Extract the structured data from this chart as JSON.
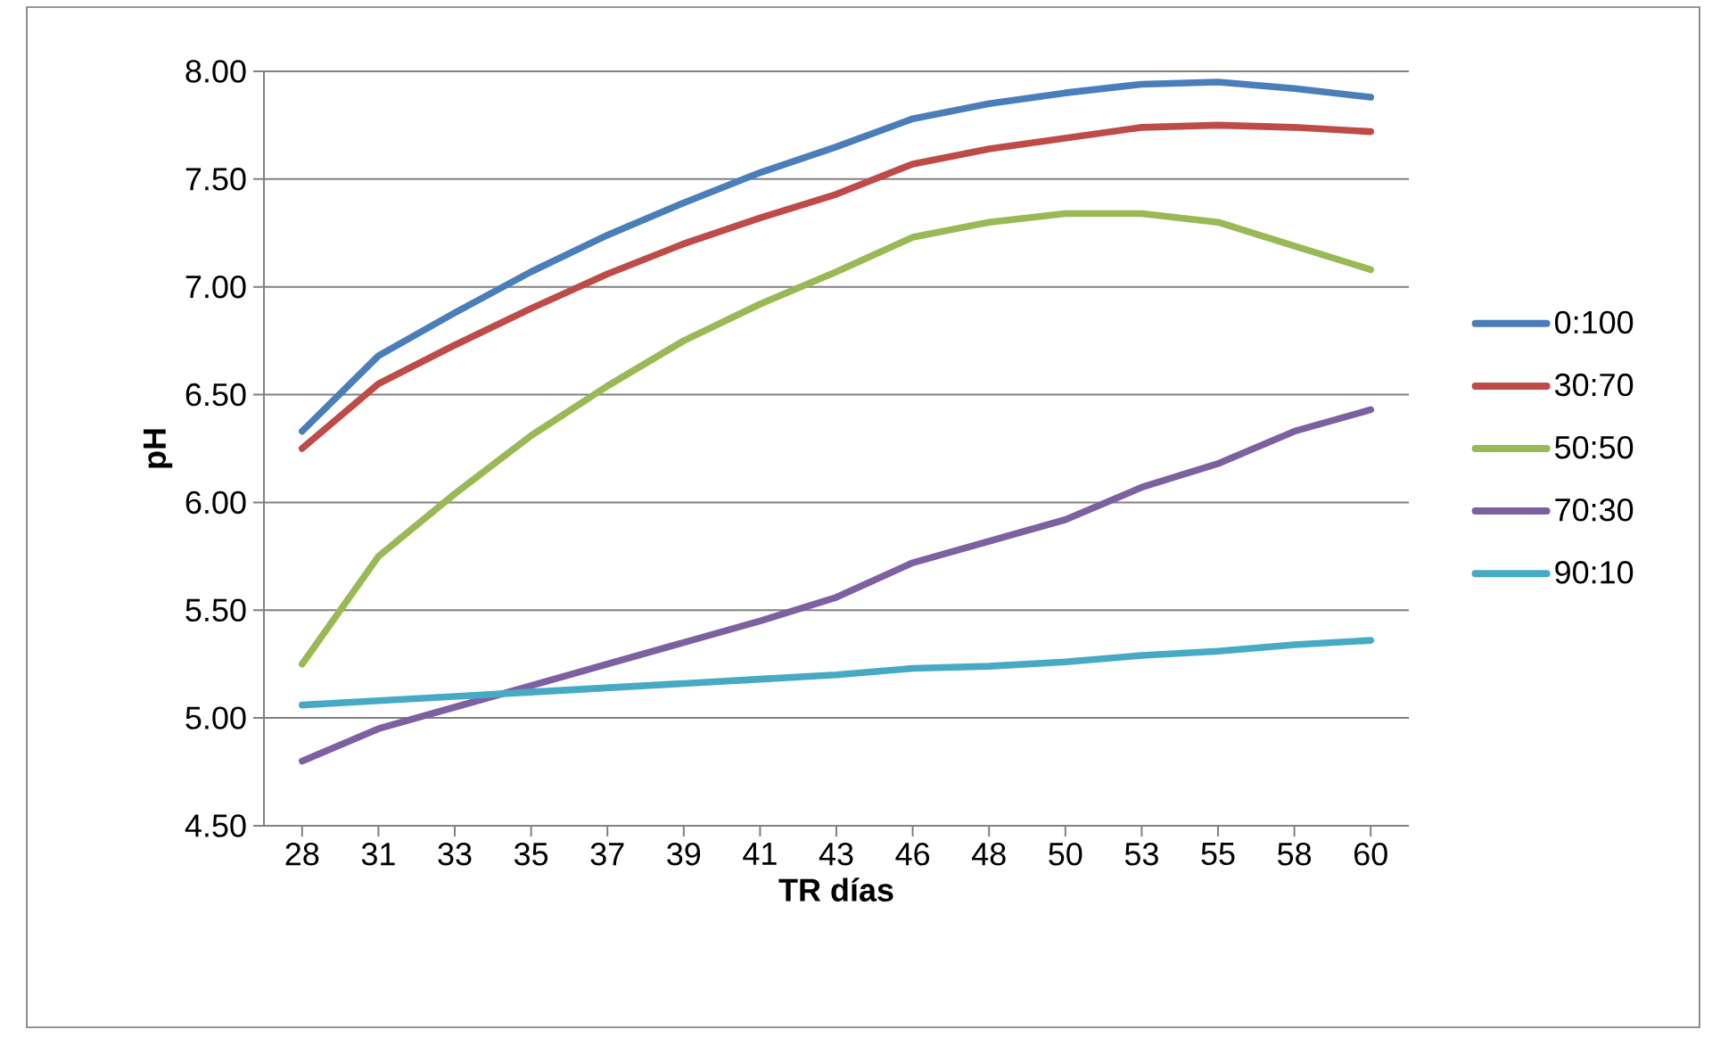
{
  "chart_data": {
    "type": "line",
    "xlabel": "TR días",
    "ylabel": "pH",
    "categories": [
      "28",
      "31",
      "33",
      "35",
      "37",
      "39",
      "41",
      "43",
      "46",
      "48",
      "50",
      "53",
      "55",
      "58",
      "60"
    ],
    "series": [
      {
        "name": "0:100",
        "color": "#4a7ebb",
        "values": [
          6.33,
          6.68,
          6.88,
          7.07,
          7.24,
          7.39,
          7.53,
          7.65,
          7.78,
          7.85,
          7.9,
          7.94,
          7.95,
          7.92,
          7.88
        ]
      },
      {
        "name": "30:70",
        "color": "#be4b48",
        "values": [
          6.25,
          6.55,
          6.73,
          6.9,
          7.06,
          7.2,
          7.32,
          7.43,
          7.57,
          7.64,
          7.69,
          7.74,
          7.75,
          7.74,
          7.72
        ]
      },
      {
        "name": "50:50",
        "color": "#98b954",
        "values": [
          5.25,
          5.75,
          6.04,
          6.31,
          6.54,
          6.75,
          6.92,
          7.07,
          7.23,
          7.3,
          7.34,
          7.34,
          7.3,
          7.19,
          7.08
        ]
      },
      {
        "name": "70:30",
        "color": "#7d60a0",
        "values": [
          4.8,
          4.95,
          5.05,
          5.15,
          5.25,
          5.35,
          5.45,
          5.56,
          5.72,
          5.82,
          5.92,
          6.07,
          6.18,
          6.33,
          6.43
        ]
      },
      {
        "name": "90:10",
        "color": "#46aac5",
        "values": [
          5.06,
          5.08,
          5.1,
          5.12,
          5.14,
          5.16,
          5.18,
          5.2,
          5.23,
          5.24,
          5.26,
          5.29,
          5.31,
          5.34,
          5.36
        ]
      }
    ],
    "ylim": [
      4.5,
      8.0
    ],
    "yticks": [
      {
        "value": 4.5,
        "label": "4.50"
      },
      {
        "value": 5.0,
        "label": "5.00"
      },
      {
        "value": 5.5,
        "label": "5.50"
      },
      {
        "value": 6.0,
        "label": "6.00"
      },
      {
        "value": 6.5,
        "label": "6.50"
      },
      {
        "value": 7.0,
        "label": "7.00"
      },
      {
        "value": 7.5,
        "label": "7.50"
      },
      {
        "value": 8.0,
        "label": "8.00"
      }
    ],
    "grid": "y",
    "legend": "right",
    "marker": "none",
    "line_style": "solid"
  }
}
